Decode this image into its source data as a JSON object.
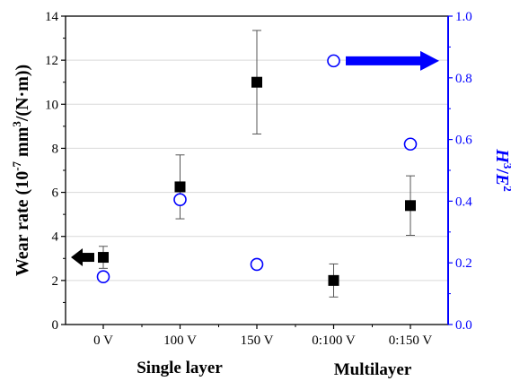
{
  "chart_data": {
    "type": "scatter",
    "categories": [
      "0 V",
      "100 V",
      "150 V",
      "0:100 V",
      "0:150 V"
    ],
    "group_labels": [
      "Single layer",
      "Multilayer"
    ],
    "left_axis": {
      "label_prefix": "Wear rate (10",
      "label_exp1": "-7",
      "label_mid": " mm",
      "label_exp2": "3",
      "label_suffix": "/(N·m))",
      "ylim": [
        0,
        14
      ],
      "ticks": [
        "0",
        "2",
        "4",
        "6",
        "8",
        "10",
        "12",
        "14"
      ]
    },
    "right_axis": {
      "label_h": "H",
      "label_exp1": "3",
      "label_slash": "/",
      "label_e": "E",
      "label_exp2": "2",
      "ylim": [
        0,
        1.0
      ],
      "ticks": [
        "0.0",
        "0.2",
        "0.4",
        "0.6",
        "0.8",
        "1.0"
      ],
      "color": "#0000ff"
    },
    "series": [
      {
        "axis": "left",
        "marker": "filled-square",
        "color": "#000000",
        "values": [
          3.05,
          6.25,
          11.0,
          2.0,
          5.4
        ],
        "error": [
          0.5,
          1.45,
          2.35,
          0.75,
          1.35
        ]
      },
      {
        "axis": "right",
        "marker": "open-circle",
        "color": "#0000ff",
        "values": [
          0.155,
          0.405,
          0.195,
          0.855,
          0.585
        ]
      }
    ],
    "gridlines": "horizontal-light",
    "arrows": [
      {
        "direction": "left",
        "color": "#000000",
        "points_to": "left axis"
      },
      {
        "direction": "right",
        "color": "#0000ff",
        "points_to": "right axis"
      }
    ]
  }
}
